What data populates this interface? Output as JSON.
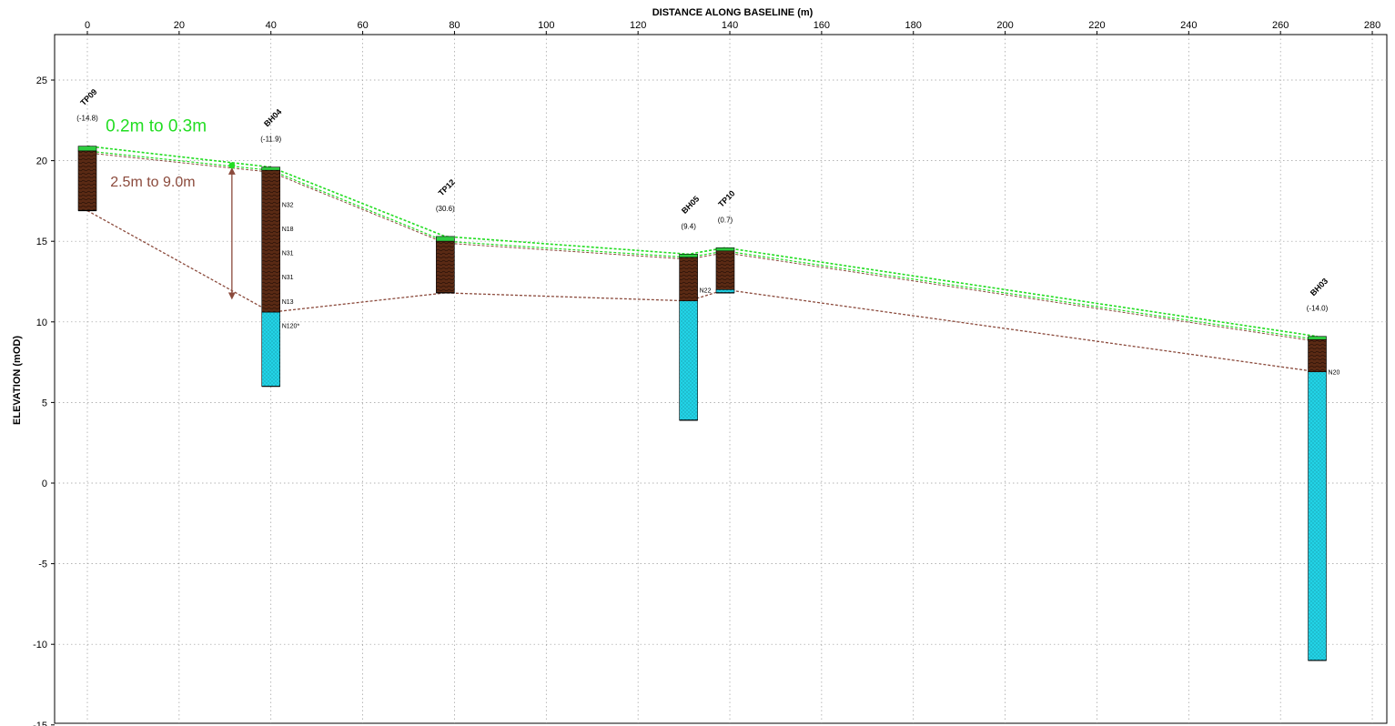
{
  "chart_data": {
    "type": "scatter",
    "xlabel": "DISTANCE ALONG BASELINE (m)",
    "ylabel": "ELEVATION (mOD)",
    "xlim": [
      -7,
      286
    ],
    "ylim": [
      -15,
      28
    ],
    "x_ticks": [
      0,
      20,
      40,
      60,
      80,
      100,
      120,
      140,
      160,
      180,
      200,
      220,
      240,
      260,
      280
    ],
    "y_ticks": [
      -15,
      -10,
      -5,
      0,
      5,
      10,
      15,
      20,
      25
    ],
    "x_axis_position": "top",
    "grid": true,
    "colors": {
      "topsoil_line": "#22dd22",
      "base_line": "#8b4a3c",
      "made_ground": "#5a2a14",
      "natural": "#22d3e6",
      "topsoil": "#2ecc40",
      "annotation_green": "#22dd22",
      "annotation_brown": "#8b4a3c"
    },
    "boreholes": [
      {
        "id": "TP09",
        "offset": "(-14.8)",
        "x": 0,
        "top": 20.9,
        "topsoil_base": 20.6,
        "brown_base": 16.9,
        "base": 16.9,
        "n_values": []
      },
      {
        "id": "BH04",
        "offset": "(-11.9)",
        "x": 40,
        "top": 19.6,
        "topsoil_base": 19.4,
        "brown_base": 10.6,
        "base": 6.0,
        "n_values": [
          {
            "label": "N32",
            "y": 17.3
          },
          {
            "label": "N18",
            "y": 15.8
          },
          {
            "label": "N31",
            "y": 14.3
          },
          {
            "label": "N31",
            "y": 12.8
          },
          {
            "label": "N13",
            "y": 11.3
          },
          {
            "label": "N120*",
            "y": 9.8
          }
        ]
      },
      {
        "id": "TP12",
        "offset": "(30.6)",
        "x": 78,
        "top": 15.3,
        "topsoil_base": 15.0,
        "brown_base": 11.8,
        "base": 11.8,
        "n_values": []
      },
      {
        "id": "BH05",
        "offset": "(9.4)",
        "x": 131,
        "top": 14.2,
        "topsoil_base": 14.0,
        "brown_base": 11.3,
        "base": 3.9,
        "n_values": [
          {
            "label": "N22",
            "y": 12.0
          }
        ]
      },
      {
        "id": "TP10",
        "offset": "(0.7)",
        "x": 139,
        "top": 14.6,
        "topsoil_base": 14.4,
        "brown_base": 12.0,
        "base": 11.8,
        "n_values": []
      },
      {
        "id": "BH03",
        "offset": "(-14.0)",
        "x": 268,
        "top": 9.1,
        "topsoil_base": 8.9,
        "brown_base": 6.9,
        "base": -11.0,
        "n_values": [
          {
            "label": "N20",
            "y": 6.9
          }
        ]
      }
    ],
    "series": [
      {
        "x": [
          0,
          40,
          78,
          131,
          139,
          268
        ],
        "values": [
          20.9,
          19.6,
          15.3,
          14.2,
          14.6,
          9.1
        ]
      },
      {
        "x": [
          0,
          40,
          78,
          131,
          139,
          268
        ],
        "values": [
          20.6,
          19.4,
          15.0,
          14.0,
          14.4,
          8.9
        ]
      },
      {
        "x": [
          0,
          40,
          78,
          131,
          139,
          268
        ],
        "values": [
          16.9,
          10.6,
          11.8,
          11.3,
          12.0,
          6.9
        ]
      }
    ],
    "annotations": [
      {
        "text": "0.2m to 0.3m",
        "x": 4,
        "y": 21.8,
        "color": "#22dd22"
      },
      {
        "text": "2.5m to 9.0m",
        "x": 5,
        "y": 18.4,
        "color": "#8b4a3c"
      }
    ],
    "dimension_arrow": {
      "x": 31.5,
      "y_top": 19.7,
      "y_bottom": 11.6
    }
  }
}
